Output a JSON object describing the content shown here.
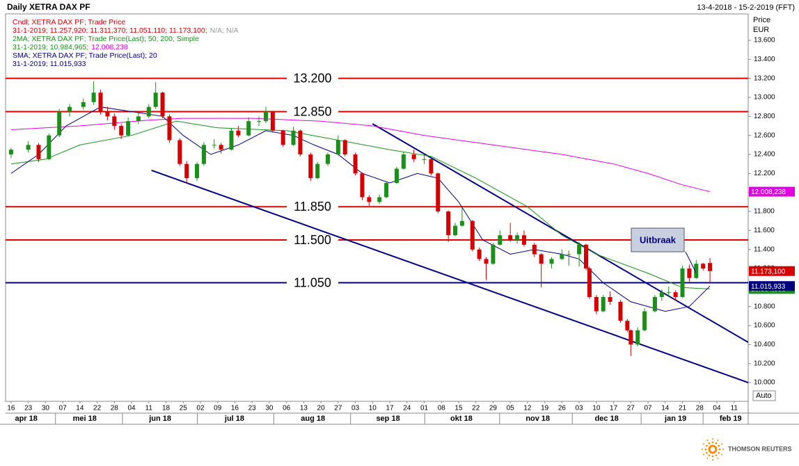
{
  "chart_data": {
    "type": "candlestick",
    "title": "Daily XETRA DAX PF",
    "date_range": "13-4-2018 - 15-2-2019 (FFT)",
    "y_axis_label": "Price",
    "y_axis_unit": "EUR",
    "scale_mode": "Auto",
    "annotation": "Uitbraak",
    "brand": "THOMSON REUTERS",
    "legend_lines": [
      {
        "text": "Cndl; XETRA DAX PF; Trade Price",
        "color": "#d40000"
      },
      {
        "text": "31-1-2019;  11.257,920;  11.311,370;  11.051,110;  11.173,100;",
        "extra": "N/A; N/A",
        "color": "#d40000",
        "extra_color": "#999999"
      },
      {
        "text": "2MA; XETRA DAX PF; Trade Price(Last);  50; 200; Simple",
        "color": "#1a8f1a"
      },
      {
        "text": "31-1-2019;  10.984,965;",
        "extra": "12.008,238",
        "color": "#1a8f1a",
        "extra_color": "#e000e0"
      },
      {
        "text": "SMA; XETRA DAX PF; Trade Price(Last);  20",
        "color": "#000080"
      },
      {
        "text": "31-1-2019;  11.015,933",
        "color": "#000080"
      }
    ],
    "xlim": [
      -1.6,
      214.1
    ],
    "ylim": [
      9803,
      13878
    ],
    "yticks": [
      {
        "value": 10000,
        "label": "10.000"
      },
      {
        "value": 10200,
        "label": "10.200"
      },
      {
        "value": 10400,
        "label": "10.400"
      },
      {
        "value": 10600,
        "label": "10.600"
      },
      {
        "value": 10800,
        "label": "10.800"
      },
      {
        "value": 11000,
        "label": "11.000"
      },
      {
        "value": 11200,
        "label": "11.200"
      },
      {
        "value": 11400,
        "label": "11.400"
      },
      {
        "value": 11600,
        "label": "11.600"
      },
      {
        "value": 11800,
        "label": "11.800"
      },
      {
        "value": 12000,
        "label": "12.000"
      },
      {
        "value": 12200,
        "label": "12.200"
      },
      {
        "value": 12400,
        "label": "12.400"
      },
      {
        "value": 12600,
        "label": "12.600"
      },
      {
        "value": 12800,
        "label": "12.800"
      },
      {
        "value": 13000,
        "label": "13.000"
      },
      {
        "value": 13200,
        "label": "13.200"
      },
      {
        "value": 13400,
        "label": "13.400"
      },
      {
        "value": 13600,
        "label": "13.600"
      }
    ],
    "xticks": [
      {
        "value": 0,
        "label": "16"
      },
      {
        "value": 5,
        "label": "23"
      },
      {
        "value": 10,
        "label": "30"
      },
      {
        "value": 15,
        "label": "07"
      },
      {
        "value": 20,
        "label": "14"
      },
      {
        "value": 25,
        "label": "22"
      },
      {
        "value": 30,
        "label": "28"
      },
      {
        "value": 35,
        "label": "04"
      },
      {
        "value": 40,
        "label": "11"
      },
      {
        "value": 45,
        "label": "18"
      },
      {
        "value": 50,
        "label": "25"
      },
      {
        "value": 55,
        "label": "02"
      },
      {
        "value": 60,
        "label": "09"
      },
      {
        "value": 65,
        "label": "16"
      },
      {
        "value": 70,
        "label": "23"
      },
      {
        "value": 75,
        "label": "30"
      },
      {
        "value": 80,
        "label": "06"
      },
      {
        "value": 85,
        "label": "13"
      },
      {
        "value": 90,
        "label": "20"
      },
      {
        "value": 95,
        "label": "27"
      },
      {
        "value": 100,
        "label": "03"
      },
      {
        "value": 105,
        "label": "10"
      },
      {
        "value": 110,
        "label": "17"
      },
      {
        "value": 115,
        "label": "24"
      },
      {
        "value": 120,
        "label": "01"
      },
      {
        "value": 125,
        "label": "08"
      },
      {
        "value": 130,
        "label": "15"
      },
      {
        "value": 135,
        "label": "22"
      },
      {
        "value": 140,
        "label": "29"
      },
      {
        "value": 145,
        "label": "05"
      },
      {
        "value": 150,
        "label": "12"
      },
      {
        "value": 155,
        "label": "19"
      },
      {
        "value": 160,
        "label": "26"
      },
      {
        "value": 165,
        "label": "03"
      },
      {
        "value": 170,
        "label": "10"
      },
      {
        "value": 175,
        "label": "17"
      },
      {
        "value": 180,
        "label": "27"
      },
      {
        "value": 185,
        "label": "07"
      },
      {
        "value": 190,
        "label": "14"
      },
      {
        "value": 195,
        "label": "21"
      },
      {
        "value": 200,
        "label": "28"
      },
      {
        "value": 205,
        "label": "04"
      },
      {
        "value": 210,
        "label": "11"
      }
    ],
    "months": [
      {
        "value": 4.4,
        "label": "apr 18"
      },
      {
        "value": 21.4,
        "label": "mei 18"
      },
      {
        "value": 43.3,
        "label": "jun 18"
      },
      {
        "value": 64.9,
        "label": "jul 18"
      },
      {
        "value": 87.7,
        "label": "aug 18"
      },
      {
        "value": 109.5,
        "label": "sep 18"
      },
      {
        "value": 130.8,
        "label": "okt 18"
      },
      {
        "value": 153,
        "label": "nov 18"
      },
      {
        "value": 173,
        "label": "dec 18"
      },
      {
        "value": 193,
        "label": "jan 19"
      },
      {
        "value": 209,
        "label": "feb 19"
      }
    ],
    "up_color": "#1a8f1a",
    "down_color": "#d40000",
    "close_label": "11.173,100",
    "candles": [
      [
        0,
        12400,
        12470,
        12360,
        12450
      ],
      [
        5,
        12450,
        12540,
        12420,
        12500
      ],
      [
        8,
        12500,
        12520,
        12320,
        12350
      ],
      [
        11,
        12350,
        12620,
        12340,
        12600
      ],
      [
        14,
        12600,
        12880,
        12580,
        12850
      ],
      [
        17,
        12850,
        12930,
        12800,
        12900
      ],
      [
        21,
        12900,
        12990,
        12870,
        12950
      ],
      [
        24,
        12950,
        13170,
        12920,
        13050
      ],
      [
        26,
        13050,
        13080,
        12820,
        12850
      ],
      [
        28,
        12850,
        12900,
        12760,
        12800
      ],
      [
        30,
        12800,
        12830,
        12660,
        12700
      ],
      [
        32,
        12700,
        12720,
        12560,
        12600
      ],
      [
        34,
        12600,
        12790,
        12590,
        12750
      ],
      [
        37,
        12750,
        12840,
        12720,
        12800
      ],
      [
        40,
        12800,
        12930,
        12780,
        12900
      ],
      [
        42,
        12900,
        13160,
        12880,
        13050
      ],
      [
        44,
        13050,
        13060,
        12780,
        12800
      ],
      [
        46,
        12800,
        12820,
        12520,
        12550
      ],
      [
        49,
        12550,
        12570,
        12280,
        12300
      ],
      [
        51,
        12300,
        12330,
        12100,
        12150
      ],
      [
        54,
        12150,
        12320,
        12120,
        12300
      ],
      [
        56,
        12300,
        12530,
        12280,
        12500
      ],
      [
        59,
        12500,
        12560,
        12460,
        12500
      ],
      [
        61,
        12500,
        12520,
        12410,
        12450
      ],
      [
        64,
        12450,
        12680,
        12440,
        12650
      ],
      [
        66,
        12650,
        12700,
        12580,
        12600
      ],
      [
        69,
        12600,
        12790,
        12590,
        12750
      ],
      [
        72,
        12750,
        12800,
        12700,
        12750
      ],
      [
        74,
        12750,
        12900,
        12730,
        12850
      ],
      [
        76,
        12850,
        12860,
        12630,
        12650
      ],
      [
        79,
        12650,
        12660,
        12480,
        12500
      ],
      [
        82,
        12500,
        12690,
        12490,
        12650
      ],
      [
        84,
        12650,
        12660,
        12380,
        12400
      ],
      [
        87,
        12400,
        12420,
        12120,
        12150
      ],
      [
        89,
        12150,
        12320,
        12140,
        12300
      ],
      [
        92,
        12300,
        12420,
        12280,
        12400
      ],
      [
        95,
        12400,
        12600,
        12390,
        12550
      ],
      [
        97,
        12550,
        12560,
        12380,
        12400
      ],
      [
        100,
        12400,
        12420,
        12180,
        12200
      ],
      [
        102,
        12200,
        12210,
        11920,
        11950
      ],
      [
        104,
        11950,
        11970,
        11860,
        11900
      ],
      [
        107,
        11900,
        11980,
        11880,
        11950
      ],
      [
        109,
        11950,
        12120,
        11940,
        12100
      ],
      [
        112,
        12100,
        12270,
        12090,
        12250
      ],
      [
        114,
        12250,
        12430,
        12240,
        12400
      ],
      [
        117,
        12400,
        12450,
        12320,
        12350
      ],
      [
        120,
        12350,
        12400,
        12300,
        12350
      ],
      [
        122,
        12350,
        12360,
        12180,
        12200
      ],
      [
        124,
        12200,
        12210,
        11780,
        11800
      ],
      [
        127,
        11800,
        11810,
        11480,
        11550
      ],
      [
        129,
        11550,
        11680,
        11540,
        11650
      ],
      [
        131,
        11650,
        11840,
        11640,
        11700
      ],
      [
        134,
        11700,
        11710,
        11380,
        11400
      ],
      [
        136,
        11400,
        11420,
        11280,
        11300
      ],
      [
        138,
        11300,
        11320,
        11080,
        11250
      ],
      [
        140,
        11250,
        11470,
        11240,
        11450
      ],
      [
        142,
        11450,
        11600,
        11440,
        11550
      ],
      [
        145,
        11550,
        11680,
        11480,
        11500
      ],
      [
        147,
        11500,
        11580,
        11460,
        11550
      ],
      [
        149,
        11550,
        11600,
        11430,
        11450
      ],
      [
        152,
        11450,
        11470,
        11320,
        11350
      ],
      [
        154,
        11350,
        11360,
        11000,
        11250
      ],
      [
        157,
        11250,
        11320,
        11200,
        11300
      ],
      [
        160,
        11300,
        11400,
        11290,
        11350
      ],
      [
        162,
        11350,
        11390,
        11230,
        11350
      ],
      [
        165,
        11350,
        11480,
        11220,
        11450
      ],
      [
        167,
        11450,
        11460,
        11180,
        11200
      ],
      [
        168,
        11200,
        11220,
        10880,
        10900
      ],
      [
        170,
        10900,
        10920,
        10720,
        10750
      ],
      [
        172,
        10750,
        10920,
        10740,
        10900
      ],
      [
        174,
        10900,
        10960,
        10820,
        10850
      ],
      [
        177,
        10850,
        10870,
        10630,
        10650
      ],
      [
        179,
        10650,
        10670,
        10530,
        10550
      ],
      [
        180,
        10550,
        10560,
        10280,
        10400
      ],
      [
        182,
        10400,
        10580,
        10380,
        10550
      ],
      [
        184,
        10550,
        10780,
        10540,
        10750
      ],
      [
        187,
        10750,
        10920,
        10740,
        10900
      ],
      [
        189,
        10900,
        10980,
        10860,
        10950
      ],
      [
        191,
        10950,
        11010,
        10900,
        10950
      ],
      [
        193,
        10950,
        10970,
        10860,
        10900
      ],
      [
        195,
        10900,
        11230,
        10890,
        11200
      ],
      [
        197,
        11200,
        11240,
        11060,
        11100
      ],
      [
        199,
        11100,
        11290,
        11090,
        11250
      ],
      [
        201,
        11250,
        11260,
        11180,
        11200
      ],
      [
        203,
        11257.92,
        11311.37,
        11051.11,
        11173.1
      ]
    ],
    "series": [
      {
        "name": "MA 200",
        "color": "#e000e0",
        "value_label": "12.008,238",
        "x": [
          0,
          20,
          40,
          50,
          70,
          90,
          105,
          120,
          140,
          160,
          175,
          185,
          195,
          203
        ],
        "values": [
          12660,
          12700,
          12760,
          12780,
          12780,
          12750,
          12700,
          12600,
          12500,
          12400,
          12300,
          12200,
          12080,
          12008.238
        ]
      },
      {
        "name": "MA 50",
        "color": "#1a8f1a",
        "value_label": "10.984,965",
        "x": [
          0,
          10,
          20,
          35,
          48,
          60,
          80,
          95,
          110,
          122,
          135,
          150,
          160,
          170,
          185,
          195,
          203
        ],
        "values": [
          12300,
          12350,
          12500,
          12600,
          12750,
          12680,
          12650,
          12550,
          12450,
          12380,
          12150,
          11850,
          11550,
          11350,
          11150,
          11000,
          10984.965
        ]
      },
      {
        "name": "SMA 20",
        "color": "#000080",
        "value_label": "11.015,933",
        "x": [
          0,
          8,
          16,
          26,
          35,
          44,
          50,
          58,
          66,
          74,
          82,
          88,
          95,
          102,
          110,
          118,
          124,
          130,
          137,
          145,
          152,
          160,
          165,
          172,
          180,
          190,
          197,
          203
        ],
        "values": [
          12200,
          12400,
          12700,
          12900,
          12850,
          12800,
          12600,
          12400,
          12500,
          12650,
          12600,
          12500,
          12400,
          12200,
          12100,
          12200,
          12150,
          11900,
          11500,
          11350,
          11400,
          11350,
          11300,
          11050,
          10850,
          10750,
          10800,
          11015.933
        ]
      }
    ],
    "trendlines": [
      {
        "x": [
          105,
          214.1
        ],
        "values": [
          12722,
          10424
        ],
        "color": "#000080"
      },
      {
        "x": [
          40.8,
          214.1
        ],
        "values": [
          12232,
          10000
        ],
        "color": "#000080"
      }
    ],
    "levels": [
      {
        "value": 13200,
        "label": "13.200",
        "color": "#e00000"
      },
      {
        "value": 12850,
        "label": "12.850",
        "color": "#e00000"
      },
      {
        "value": 11850,
        "label": "11.850",
        "color": "#e00000"
      },
      {
        "value": 11500,
        "label": "11.500",
        "color": "#e00000"
      },
      {
        "value": 11050,
        "label": "11.050",
        "color": "#000080"
      }
    ]
  }
}
